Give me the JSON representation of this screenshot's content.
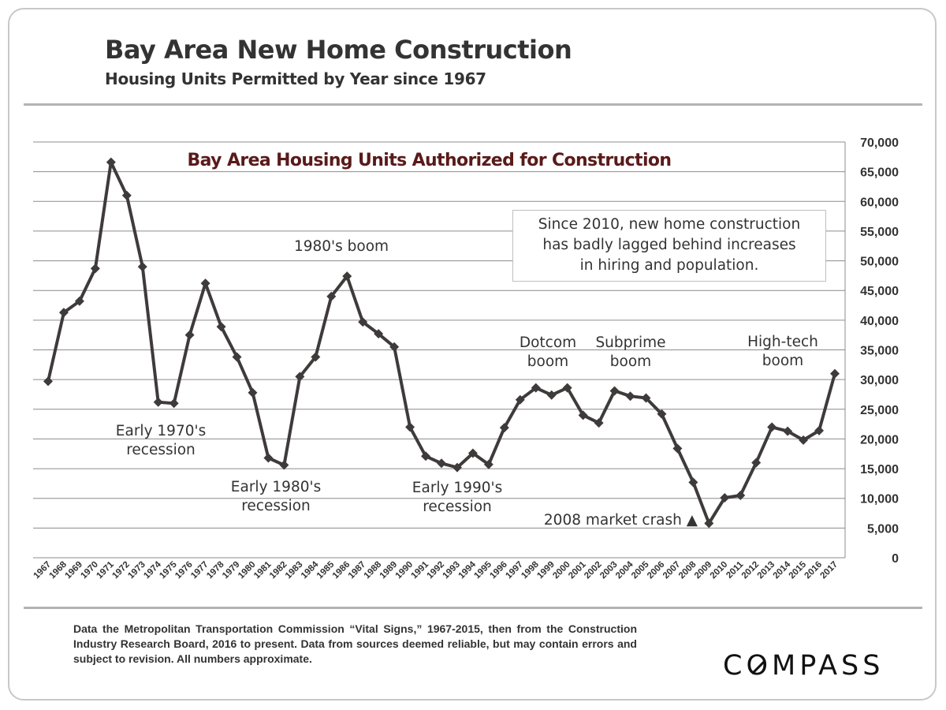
{
  "header": {
    "title": "Bay Area New Home Construction",
    "subtitle": "Housing Units Permitted by Year since 1967"
  },
  "callout": {
    "lines": [
      "Since 2010, new home construction",
      "has badly lagged behind increases",
      "in hiring and population."
    ]
  },
  "footer": {
    "note": "Data the Metropolitan Transportation Commission “Vital Signs,” 1967-2015, then from the Construction Industry Research Board, 2016 to present. Data from sources deemed reliable, but may contain errors and subject to revision. All numbers approximate.",
    "brand": "COMPASS"
  },
  "colors": {
    "line": "#3f3b3b",
    "chart_title": "#5a1a1a",
    "grid": "#8c8c8c",
    "text": "#333333"
  },
  "chart_data": {
    "type": "line",
    "title": "Bay Area Housing Units Authorized for Construction",
    "categories": [
      "1967",
      "1968",
      "1969",
      "1970",
      "1971",
      "1972",
      "1973",
      "1974",
      "1975",
      "1976",
      "1977",
      "1978",
      "1979",
      "1980",
      "1981",
      "1982",
      "1983",
      "1984",
      "1985",
      "1986",
      "1987",
      "1988",
      "1989",
      "1990",
      "1991",
      "1992",
      "1993",
      "1994",
      "1995",
      "1996",
      "1997",
      "1998",
      "1999",
      "2000",
      "2001",
      "2002",
      "2003",
      "2004",
      "2005",
      "2006",
      "2007",
      "2008",
      "2009",
      "2010",
      "2011",
      "2012",
      "2013",
      "2014",
      "2015",
      "2016",
      "2017"
    ],
    "series": [
      {
        "name": "",
        "values": [
          29700,
          41300,
          43200,
          48700,
          66600,
          61000,
          49000,
          26200,
          26000,
          37500,
          46200,
          38900,
          33800,
          27800,
          16800,
          15600,
          30500,
          33800,
          44000,
          47400,
          39700,
          37700,
          35500,
          22000,
          17100,
          15900,
          15200,
          17600,
          15700,
          21900,
          26600,
          28600,
          27400,
          28600,
          24000,
          22700,
          28100,
          27200,
          26900,
          24200,
          18400,
          12700,
          5800,
          10100,
          10500,
          16000,
          22000,
          21300,
          19800,
          21400,
          31000
        ]
      }
    ],
    "xlabel": "",
    "ylabel": "",
    "ylim": [
      0,
      70000
    ],
    "yticks": [
      0,
      5000,
      10000,
      15000,
      20000,
      25000,
      30000,
      35000,
      40000,
      45000,
      50000,
      55000,
      60000,
      65000,
      70000
    ],
    "ytick_labels": [
      "0",
      "5,000",
      "10,000",
      "15,000",
      "20,000",
      "25,000",
      "30,000",
      "35,000",
      "40,000",
      "45,000",
      "50,000",
      "55,000",
      "60,000",
      "65,000",
      "70,000"
    ],
    "grid": true,
    "annotations": [
      {
        "lines": [
          "Early 1970's",
          "recession"
        ],
        "near": "1974"
      },
      {
        "lines": [
          "1980's boom"
        ],
        "near": "1985"
      },
      {
        "lines": [
          "Early 1980's",
          "recession"
        ],
        "near": "1982"
      },
      {
        "lines": [
          "Early 1990's",
          "recession"
        ],
        "near": "1993"
      },
      {
        "lines": [
          "Dotcom",
          "boom"
        ],
        "near": "1998"
      },
      {
        "lines": [
          "Subprime",
          "boom"
        ],
        "near": "2004"
      },
      {
        "lines": [
          "High-tech",
          "boom"
        ],
        "near": "2015"
      },
      {
        "lines": [
          "2008 market crash ▲"
        ],
        "near": "2009"
      }
    ]
  }
}
